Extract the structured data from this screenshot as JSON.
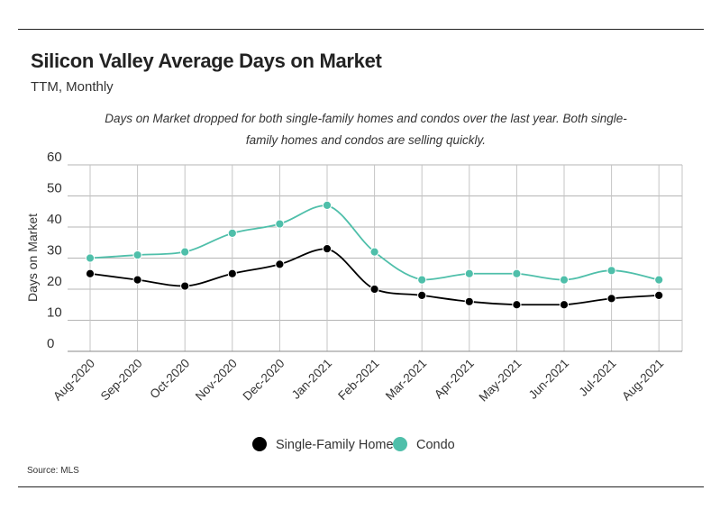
{
  "header": {
    "title": "Silicon Valley Average Days on Market",
    "subtitle": "TTM, Monthly",
    "annotation": "Days on Market dropped for both single-family homes and condos over the last year. Both single-family homes and condos are selling quickly."
  },
  "footer": {
    "source": "Source:  MLS"
  },
  "chart_data": {
    "type": "line",
    "title": "Silicon Valley Average Days on Market",
    "subtitle": "TTM, Monthly",
    "xlabel": "",
    "ylabel": "Days on Market",
    "ylim": [
      0,
      60
    ],
    "yticks": [
      0,
      10,
      20,
      30,
      40,
      50,
      60
    ],
    "grid": true,
    "legend_position": "bottom",
    "categories": [
      "Aug-2020",
      "Sep-2020",
      "Oct-2020",
      "Nov-2020",
      "Dec-2020",
      "Jan-2021",
      "Feb-2021",
      "Mar-2021",
      "Apr-2021",
      "May-2021",
      "Jun-2021",
      "Jul-2021",
      "Aug-2021"
    ],
    "series": [
      {
        "name": "Single-Family Home",
        "color": "#000000",
        "values": [
          25,
          23,
          21,
          25,
          28,
          33,
          20,
          18,
          16,
          15,
          15,
          17,
          18
        ]
      },
      {
        "name": "Condo",
        "color": "#4fbfaa",
        "values": [
          30,
          31,
          32,
          38,
          41,
          47,
          32,
          23,
          25,
          25,
          23,
          26,
          23
        ]
      }
    ]
  }
}
